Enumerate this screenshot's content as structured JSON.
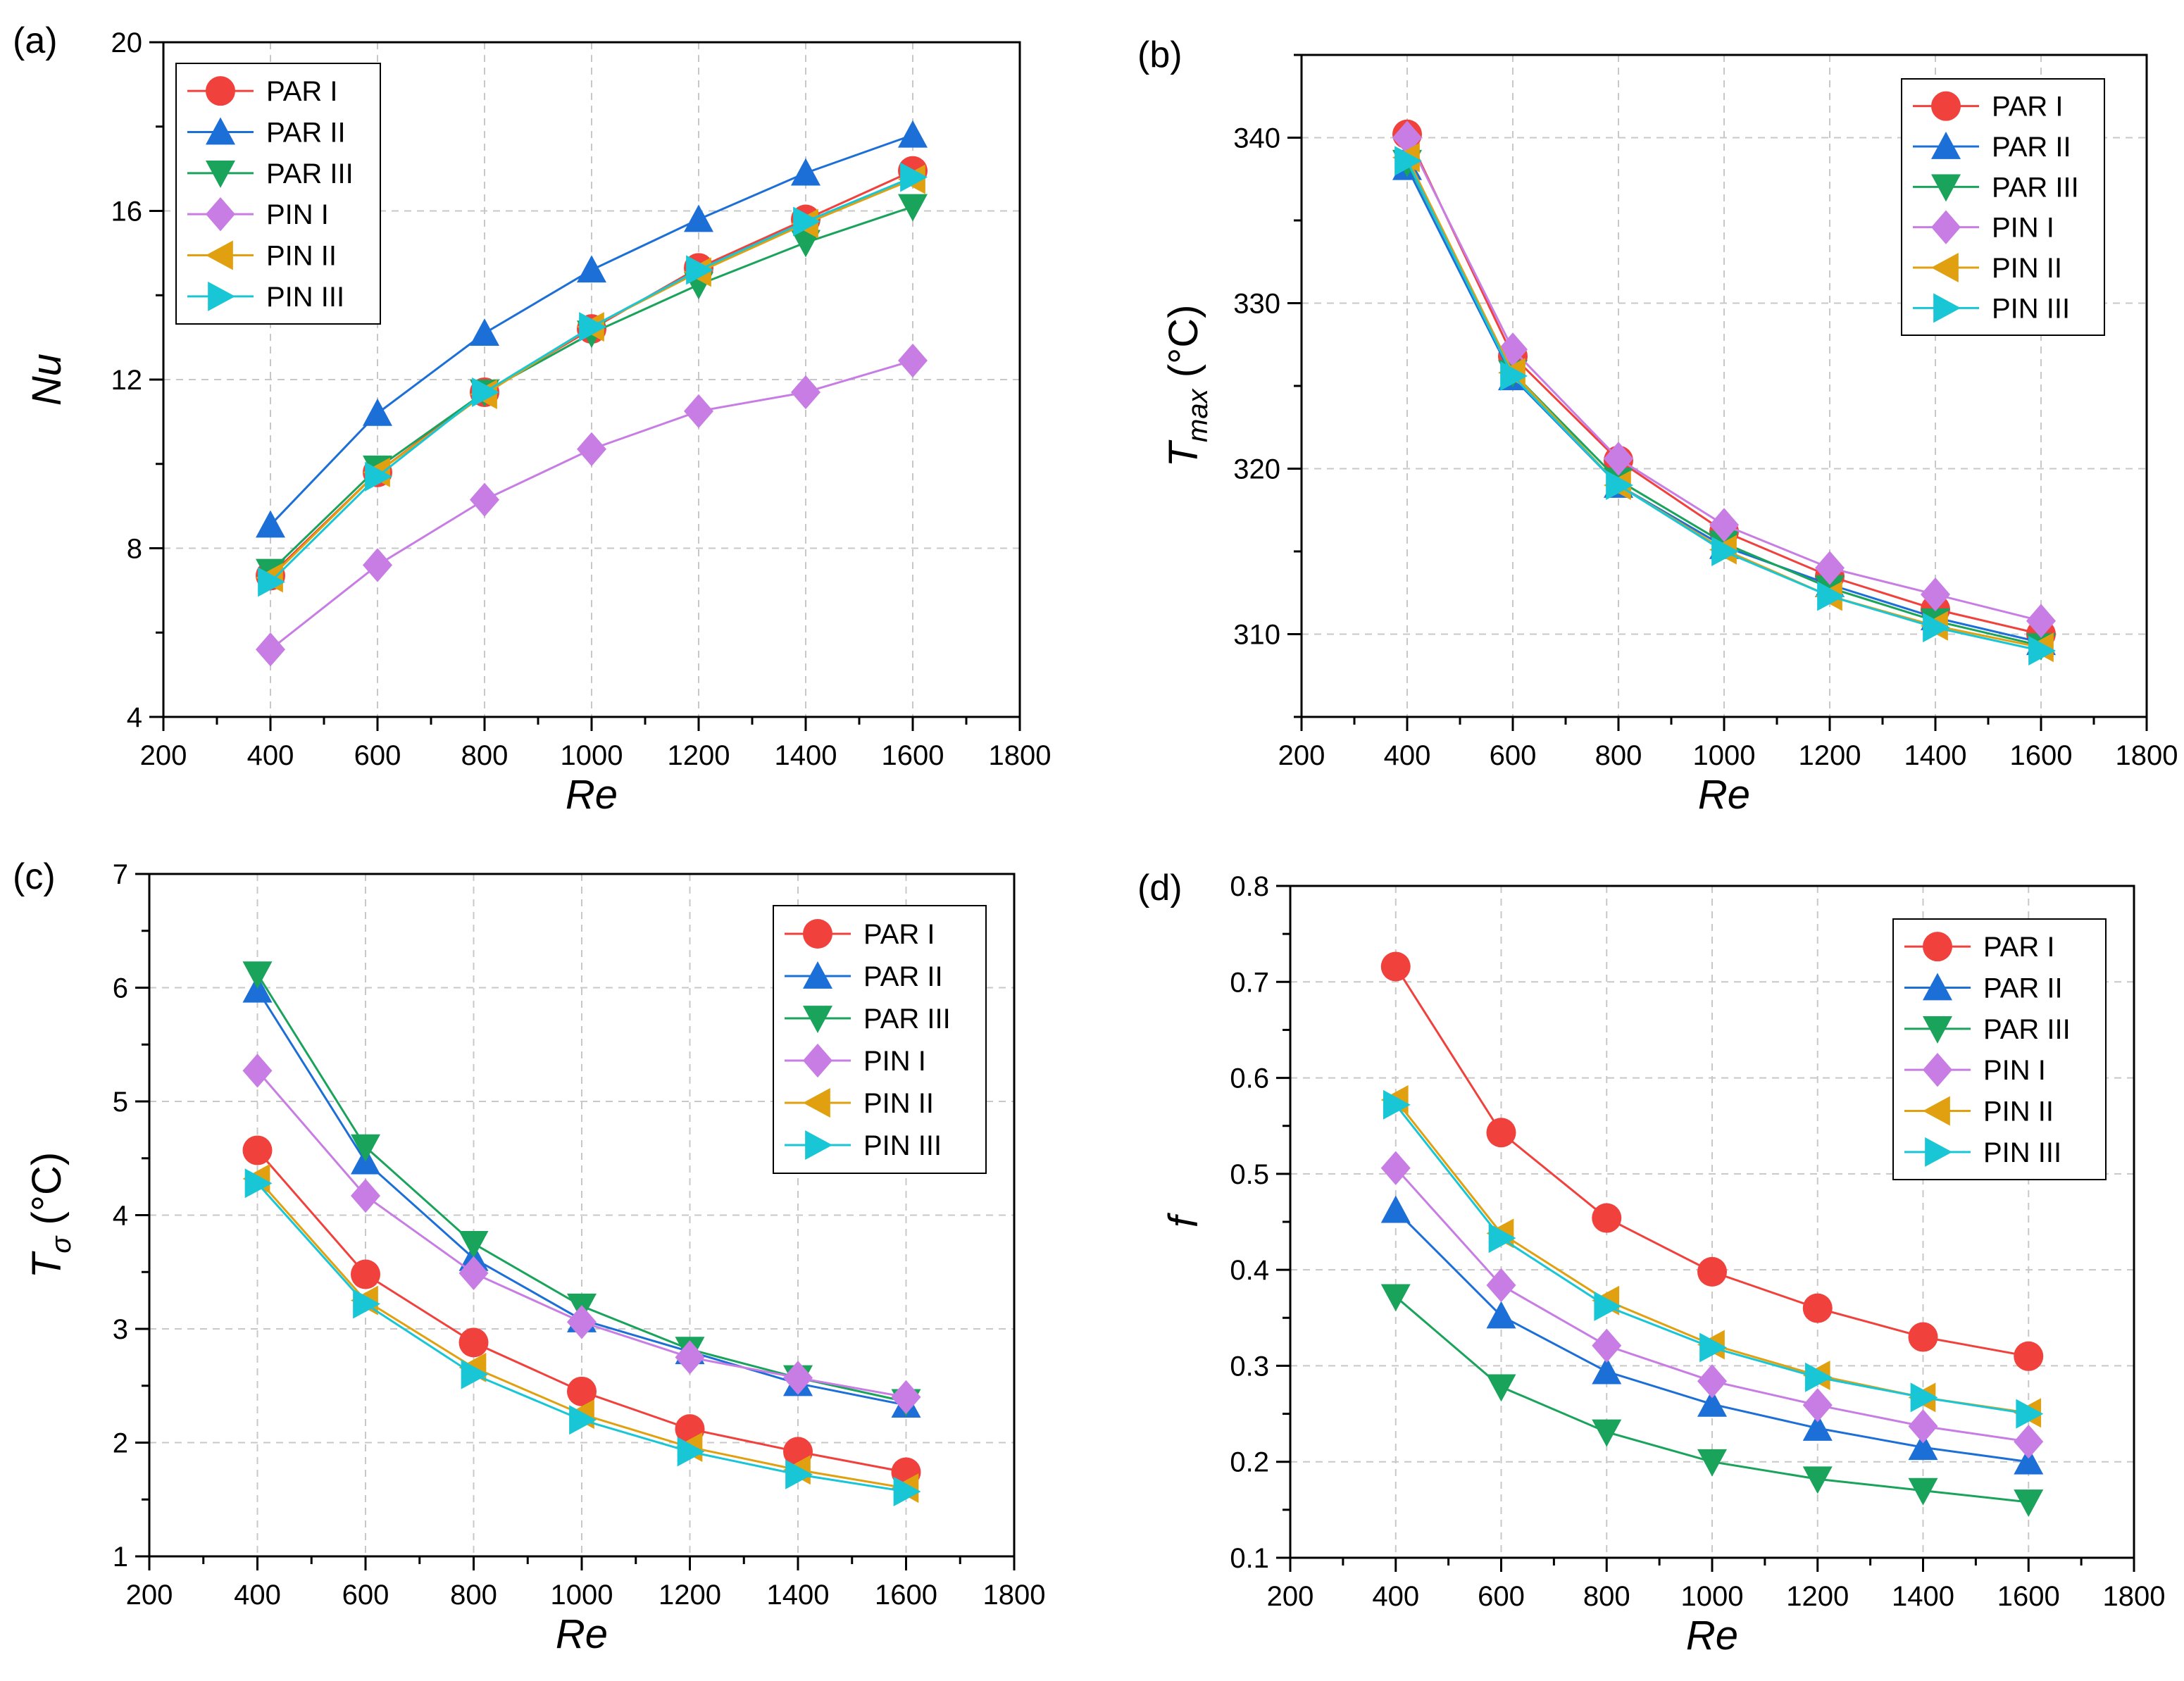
{
  "colors": {
    "PAR I": "#f0413c",
    "PAR II": "#1c6fd6",
    "PAR III": "#1aa35b",
    "PIN I": "#c77de3",
    "PIN II": "#e0a010",
    "PIN III": "#18c6d6"
  },
  "chart_data": [
    {
      "panel": "(a)",
      "type": "line",
      "xlabel": "Re",
      "ylabel": "Nu",
      "xlim": [
        200,
        1800
      ],
      "ylim": [
        4,
        20
      ],
      "xticks": [
        200,
        400,
        600,
        800,
        1000,
        1200,
        1400,
        1600,
        1800
      ],
      "yticks": [
        4,
        8,
        12,
        16,
        20
      ],
      "x": [
        400,
        600,
        800,
        1000,
        1200,
        1400,
        1600
      ],
      "grid": true,
      "legend_position": "top-left",
      "series": [
        {
          "name": "PAR I",
          "marker": "circle",
          "values": [
            7.35,
            9.8,
            11.7,
            13.2,
            14.65,
            15.8,
            16.95
          ]
        },
        {
          "name": "PAR II",
          "marker": "triangle-up",
          "values": [
            8.55,
            11.2,
            13.1,
            14.6,
            15.8,
            16.9,
            17.8
          ]
        },
        {
          "name": "PAR III",
          "marker": "triangle-down",
          "values": [
            7.45,
            9.9,
            11.7,
            13.1,
            14.25,
            15.25,
            16.1
          ]
        },
        {
          "name": "PIN I",
          "marker": "diamond",
          "values": [
            5.6,
            7.6,
            9.15,
            10.35,
            11.25,
            11.7,
            12.45
          ]
        },
        {
          "name": "PIN II",
          "marker": "triangle-left",
          "values": [
            7.3,
            9.8,
            11.65,
            13.25,
            14.55,
            15.7,
            16.75
          ]
        },
        {
          "name": "PIN III",
          "marker": "triangle-right",
          "values": [
            7.2,
            9.7,
            11.7,
            13.25,
            14.6,
            15.75,
            16.8
          ]
        }
      ]
    },
    {
      "panel": "(b)",
      "type": "line",
      "xlabel": "Re",
      "ylabel": "T",
      "ylabel_sub": "max",
      "ylabel_unit": " (°C)",
      "xlim": [
        200,
        1800
      ],
      "ylim": [
        305,
        345
      ],
      "xticks": [
        200,
        400,
        600,
        800,
        1000,
        1200,
        1400,
        1600,
        1800
      ],
      "yticks": [
        310,
        320,
        330,
        340
      ],
      "x": [
        400,
        600,
        800,
        1000,
        1200,
        1400,
        1600
      ],
      "grid": true,
      "legend_position": "top-right",
      "series": [
        {
          "name": "PAR I",
          "marker": "circle",
          "values": [
            340.2,
            326.8,
            320.5,
            316.2,
            313.5,
            311.5,
            310.0
          ]
        },
        {
          "name": "PAR II",
          "marker": "triangle-up",
          "values": [
            338.2,
            325.5,
            319.0,
            315.3,
            313.0,
            311.0,
            309.5
          ]
        },
        {
          "name": "PAR III",
          "marker": "triangle-down",
          "values": [
            338.5,
            325.8,
            319.3,
            315.5,
            312.8,
            310.8,
            309.3
          ]
        },
        {
          "name": "PIN I",
          "marker": "diamond",
          "values": [
            340.0,
            327.2,
            320.6,
            316.6,
            314.0,
            312.4,
            310.8
          ]
        },
        {
          "name": "PIN II",
          "marker": "triangle-left",
          "values": [
            338.8,
            325.8,
            319.0,
            315.1,
            312.3,
            310.5,
            309.2
          ]
        },
        {
          "name": "PIN III",
          "marker": "triangle-right",
          "values": [
            338.6,
            325.6,
            319.0,
            315.0,
            312.3,
            310.4,
            309.0
          ]
        }
      ]
    },
    {
      "panel": "(c)",
      "type": "line",
      "xlabel": "Re",
      "ylabel": "T",
      "ylabel_sub": "σ",
      "ylabel_unit": " (°C)",
      "xlim": [
        200,
        1800
      ],
      "ylim": [
        1,
        7
      ],
      "xticks": [
        200,
        400,
        600,
        800,
        1000,
        1200,
        1400,
        1600,
        1800
      ],
      "yticks": [
        1,
        2,
        3,
        4,
        5,
        6,
        7
      ],
      "x": [
        400,
        600,
        800,
        1000,
        1200,
        1400,
        1600
      ],
      "grid": true,
      "legend_position": "top-right",
      "series": [
        {
          "name": "PAR I",
          "marker": "circle",
          "values": [
            4.57,
            3.48,
            2.88,
            2.45,
            2.12,
            1.92,
            1.74
          ]
        },
        {
          "name": "PAR II",
          "marker": "triangle-up",
          "values": [
            5.98,
            4.47,
            3.62,
            3.08,
            2.8,
            2.52,
            2.33
          ]
        },
        {
          "name": "PAR III",
          "marker": "triangle-down",
          "values": [
            6.12,
            4.6,
            3.75,
            3.2,
            2.82,
            2.57,
            2.36
          ]
        },
        {
          "name": "PIN I",
          "marker": "diamond",
          "values": [
            5.27,
            4.17,
            3.49,
            3.06,
            2.75,
            2.57,
            2.4
          ]
        },
        {
          "name": "PIN II",
          "marker": "triangle-left",
          "values": [
            4.32,
            3.25,
            2.66,
            2.25,
            1.96,
            1.76,
            1.6
          ]
        },
        {
          "name": "PIN III",
          "marker": "triangle-right",
          "values": [
            4.28,
            3.22,
            2.6,
            2.2,
            1.92,
            1.72,
            1.57
          ]
        }
      ]
    },
    {
      "panel": "(d)",
      "type": "line",
      "xlabel": "Re",
      "ylabel": "f",
      "xlim": [
        200,
        1800
      ],
      "ylim": [
        0.1,
        0.8
      ],
      "xticks": [
        200,
        400,
        600,
        800,
        1000,
        1200,
        1400,
        1600,
        1800
      ],
      "yticks": [
        0.1,
        0.2,
        0.3,
        0.4,
        0.5,
        0.6,
        0.7,
        0.8
      ],
      "x": [
        400,
        600,
        800,
        1000,
        1200,
        1400,
        1600
      ],
      "grid": true,
      "legend_position": "top-right",
      "series": [
        {
          "name": "PAR I",
          "marker": "circle",
          "values": [
            0.716,
            0.543,
            0.454,
            0.398,
            0.36,
            0.33,
            0.31
          ]
        },
        {
          "name": "PAR II",
          "marker": "triangle-up",
          "values": [
            0.462,
            0.352,
            0.294,
            0.26,
            0.235,
            0.215,
            0.2
          ]
        },
        {
          "name": "PAR III",
          "marker": "triangle-down",
          "values": [
            0.372,
            0.278,
            0.231,
            0.2,
            0.182,
            0.17,
            0.158
          ]
        },
        {
          "name": "PIN I",
          "marker": "diamond",
          "values": [
            0.506,
            0.384,
            0.321,
            0.284,
            0.259,
            0.237,
            0.221
          ]
        },
        {
          "name": "PIN II",
          "marker": "triangle-left",
          "values": [
            0.577,
            0.438,
            0.368,
            0.322,
            0.29,
            0.267,
            0.251
          ]
        },
        {
          "name": "PIN III",
          "marker": "triangle-right",
          "values": [
            0.572,
            0.433,
            0.362,
            0.319,
            0.288,
            0.267,
            0.25
          ]
        }
      ]
    }
  ]
}
